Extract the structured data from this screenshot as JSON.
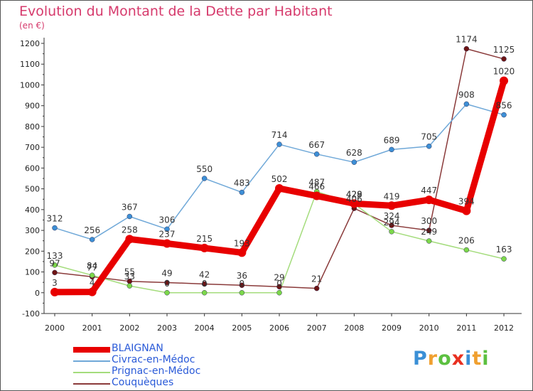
{
  "chart_data": {
    "type": "line",
    "title": "Evolution du Montant de la Dette par Habitant",
    "unit_label": "(en €)",
    "x": [
      "2000",
      "2001",
      "2002",
      "2003",
      "2004",
      "2005",
      "2006",
      "2007",
      "2008",
      "2009",
      "2010",
      "2011",
      "2012"
    ],
    "ylim": [
      -100,
      1200
    ],
    "yticks": [
      -100,
      0,
      100,
      200,
      300,
      400,
      500,
      600,
      700,
      800,
      900,
      1000,
      1100,
      1200
    ],
    "grid": false,
    "legend_position": "bottom-left",
    "series": [
      {
        "name": "BLAIGNAN",
        "color": "#e80000",
        "marker_color": "#e80000",
        "values": [
          3,
          4,
          258,
          237,
          215,
          193,
          502,
          466,
          429,
          419,
          447,
          394,
          1020
        ]
      },
      {
        "name": "Civrac-en-Médoc",
        "color": "#6fa8d8",
        "marker_color": "#3d8fd6",
        "values": [
          312,
          256,
          367,
          306,
          550,
          483,
          714,
          667,
          628,
          689,
          705,
          908,
          856
        ]
      },
      {
        "name": "Prignac-en-Médoc",
        "color": "#a4dc7c",
        "marker_color": "#7cd84a",
        "values": [
          133,
          84,
          33,
          0,
          0,
          0,
          0,
          487,
          428,
          294,
          249,
          206,
          163
        ]
      },
      {
        "name": "Couquèques",
        "color": "#8a3a3a",
        "marker_color": "#6e1414",
        "values": [
          97,
          77,
          55,
          49,
          42,
          36,
          29,
          21,
          406,
          324,
          300,
          1174,
          1125
        ]
      }
    ]
  },
  "logo": {
    "letters": [
      "P",
      "r",
      "o",
      "x",
      "i",
      "t",
      "i"
    ],
    "colors": [
      "#3a8fd6",
      "#f0a030",
      "#5cc040",
      "#e83020",
      "#3a8fd6",
      "#f0a030",
      "#5cc040"
    ]
  }
}
